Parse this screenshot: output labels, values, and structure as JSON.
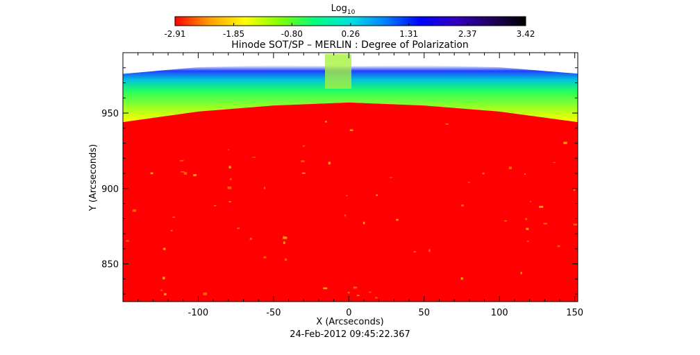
{
  "chart_data": {
    "type": "heatmap",
    "title": "Hinode SOT/SP – MERLIN : Degree of Polarization",
    "colorbar": {
      "label_main": "Log",
      "label_sub": "10",
      "ticks": [
        -2.91,
        -1.85,
        -0.8,
        0.26,
        1.31,
        2.37,
        3.42
      ],
      "tick_labels": [
        "-2.91",
        "-1.85",
        "-0.80",
        "0.26",
        "1.31",
        "2.37",
        "3.42"
      ],
      "range": [
        -2.91,
        3.42
      ],
      "colormap": [
        "#ff0000",
        "#ffa000",
        "#ffff00",
        "#80ff00",
        "#00ff80",
        "#00e0e0",
        "#0080ff",
        "#0000ff",
        "#3000c0",
        "#200060",
        "#000000"
      ]
    },
    "xlabel": "X (Arcseconds)",
    "ylabel": "Y (Arcseconds)",
    "xlim": [
      -150,
      152
    ],
    "ylim": [
      825,
      990
    ],
    "xticks": [
      -100,
      -50,
      0,
      50,
      100,
      150
    ],
    "xtick_labels": [
      "-100",
      "-50",
      "0",
      "50",
      "100",
      "150"
    ],
    "yticks": [
      850,
      900,
      950
    ],
    "ytick_labels": [
      "850",
      "900",
      "950"
    ],
    "limb": {
      "description_values": "solar limb y (arcsec) at x positions",
      "x": [
        -150,
        -100,
        -50,
        0,
        50,
        100,
        152
      ],
      "y": [
        944,
        951,
        955,
        957,
        955,
        951,
        944
      ]
    },
    "disk_value": -2.91,
    "near_limb_value": 0.1,
    "off_limb_value": 1.0,
    "timestamp": "24-Feb-2012 09:45:22.367"
  }
}
